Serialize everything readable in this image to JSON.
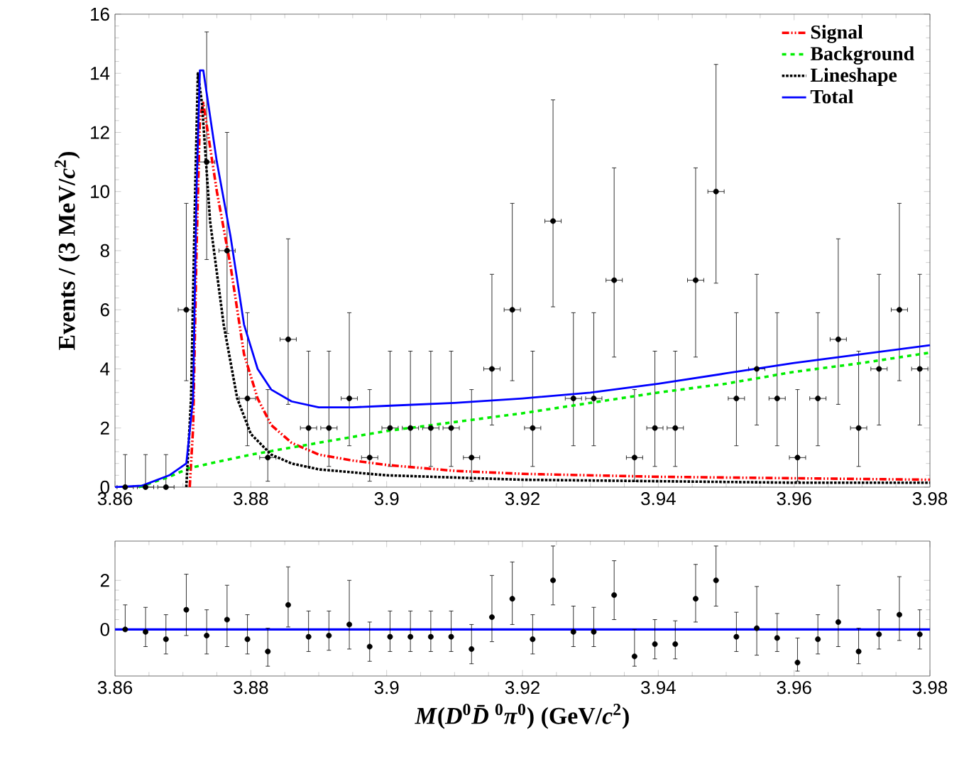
{
  "chart_data": [
    {
      "type": "line",
      "ylabel": "Events / (3 MeV/*c*$^{2}$)",
      "xlim": [
        3.86,
        3.98
      ],
      "xticks": [
        3.86,
        3.88,
        3.9,
        3.92,
        3.94,
        3.96,
        3.98
      ],
      "ylim": [
        0,
        16
      ],
      "yticks": [
        0,
        2,
        4,
        6,
        8,
        10,
        12,
        14,
        16
      ],
      "legend": "top right",
      "series": [
        {
          "type": "scatter",
          "color": "#000000",
          "marker": "circle",
          "x": [
            3.8615,
            3.8645,
            3.8675,
            3.8705,
            3.8735,
            3.8765,
            3.8795,
            3.8825,
            3.8855,
            3.8885,
            3.8915,
            3.8945,
            3.8975,
            3.9005,
            3.9035,
            3.9065,
            3.9095,
            3.9125,
            3.9155,
            3.9185,
            3.9215,
            3.9245,
            3.9275,
            3.9305,
            3.9335,
            3.9365,
            3.9395,
            3.9425,
            3.9455,
            3.9485,
            3.9515,
            3.9545,
            3.9575,
            3.9605,
            3.9635,
            3.9665,
            3.9695,
            3.9725,
            3.9755,
            3.9785
          ],
          "values": [
            0,
            0,
            0,
            6,
            11,
            8,
            3,
            1,
            5,
            2,
            2,
            3,
            1,
            2,
            2,
            2,
            2,
            1,
            4,
            6,
            2,
            9,
            3,
            3,
            7,
            1,
            2,
            2,
            7,
            10,
            3,
            4,
            3,
            1,
            3,
            5,
            2,
            4,
            6,
            4
          ],
          "errors": [
            [
              0,
              1.1
            ],
            [
              0,
              1.1
            ],
            [
              0,
              1.1
            ],
            [
              3.6,
              9.6
            ],
            [
              7.7,
              15.4
            ],
            [
              5.2,
              12.0
            ],
            [
              1.4,
              5.9
            ],
            [
              0.2,
              3.3
            ],
            [
              2.8,
              8.4
            ],
            [
              0.7,
              4.6
            ],
            [
              0.7,
              4.6
            ],
            [
              1.4,
              5.9
            ],
            [
              0.2,
              3.3
            ],
            [
              0.7,
              4.6
            ],
            [
              0.7,
              4.6
            ],
            [
              0.7,
              4.6
            ],
            [
              0.7,
              4.6
            ],
            [
              0.2,
              3.3
            ],
            [
              2.1,
              7.2
            ],
            [
              3.6,
              9.6
            ],
            [
              0.7,
              4.6
            ],
            [
              6.1,
              13.1
            ],
            [
              1.4,
              5.9
            ],
            [
              1.4,
              5.9
            ],
            [
              4.4,
              10.8
            ],
            [
              0.2,
              3.3
            ],
            [
              0.7,
              4.6
            ],
            [
              0.7,
              4.6
            ],
            [
              4.4,
              10.8
            ],
            [
              6.9,
              14.3
            ],
            [
              1.4,
              5.9
            ],
            [
              2.1,
              7.2
            ],
            [
              1.4,
              5.9
            ],
            [
              0.2,
              3.3
            ],
            [
              1.4,
              5.9
            ],
            [
              2.8,
              8.4
            ],
            [
              0.7,
              4.6
            ],
            [
              2.1,
              7.2
            ],
            [
              3.6,
              9.6
            ],
            [
              2.1,
              7.2
            ]
          ],
          "xerrors": [
            0.0012,
            0.0012,
            0.0012,
            0.0012,
            0.0012,
            0.0012,
            0.0012,
            0.0012,
            0.0012,
            0.0012,
            0.0012,
            0.0012,
            0.0012,
            0.0012,
            0.0012,
            0.0012,
            0.0012,
            0.0012,
            0.0012,
            0.0012,
            0.0012,
            0.0012,
            0.0012,
            0.0012,
            0.0012,
            0.0012,
            0.0012,
            0.0012,
            0.0012,
            0.0012,
            0.0012,
            0.0012,
            0.0012,
            0.0012,
            0.0012,
            0.0012,
            0.0012,
            0.0012,
            0.0012,
            0.0012
          ]
        },
        {
          "name": "Signal",
          "color": "#ff0000",
          "line_style": "dashdot",
          "x": [
            3.871,
            3.8715,
            3.872,
            3.8725,
            3.873,
            3.875,
            3.877,
            3.879,
            3.881,
            3.883,
            3.886,
            3.89,
            3.895,
            3.9,
            3.91,
            3.92,
            3.94,
            3.96,
            3.98
          ],
          "values": [
            0,
            2,
            8,
            12.5,
            13,
            10,
            7.5,
            4.5,
            3.0,
            2.1,
            1.5,
            1.1,
            0.9,
            0.75,
            0.55,
            0.45,
            0.35,
            0.3,
            0.25
          ]
        },
        {
          "name": "Background",
          "color": "#00ee00",
          "line_style": "dashed",
          "x": [
            3.8635,
            3.868,
            3.871,
            3.88,
            3.89,
            3.9,
            3.91,
            3.92,
            3.93,
            3.94,
            3.95,
            3.96,
            3.97,
            3.98
          ],
          "values": [
            0,
            0.35,
            0.65,
            1.1,
            1.5,
            1.9,
            2.2,
            2.5,
            2.85,
            3.2,
            3.5,
            3.9,
            4.2,
            4.55
          ]
        },
        {
          "name": "Lineshape",
          "color": "#000000",
          "line_style": "dotted",
          "x": [
            3.8705,
            3.8712,
            3.8718,
            3.8722,
            3.8728,
            3.874,
            3.876,
            3.878,
            3.88,
            3.883,
            3.886,
            3.89,
            3.9,
            3.92,
            3.94,
            3.96,
            3.98
          ],
          "values": [
            0,
            3,
            10,
            14,
            13,
            9,
            5.5,
            3,
            1.8,
            1.1,
            0.8,
            0.6,
            0.4,
            0.25,
            0.2,
            0.15,
            0.15
          ]
        },
        {
          "name": "Total",
          "color": "#0000ff",
          "line_style": "solid",
          "x": [
            3.86,
            3.864,
            3.868,
            3.8705,
            3.8715,
            3.872,
            3.8725,
            3.873,
            3.875,
            3.877,
            3.879,
            3.881,
            3.883,
            3.886,
            3.89,
            3.895,
            3.9,
            3.91,
            3.92,
            3.93,
            3.94,
            3.95,
            3.96,
            3.97,
            3.98
          ],
          "values": [
            0,
            0.05,
            0.4,
            0.8,
            3,
            10,
            14.1,
            14.1,
            11,
            8.5,
            5.5,
            4.0,
            3.3,
            2.9,
            2.7,
            2.7,
            2.75,
            2.85,
            3.0,
            3.2,
            3.5,
            3.85,
            4.2,
            4.5,
            4.8
          ]
        }
      ]
    },
    {
      "type": "scatter",
      "xlabel": "*M*(*D*$^{0}$*D̄*$^{0}$*π*$^{0}$) (GeV/*c*$^{2}$)",
      "xlim": [
        3.86,
        3.98
      ],
      "xticks": [
        3.86,
        3.88,
        3.9,
        3.92,
        3.94,
        3.96,
        3.98
      ],
      "ylim": [
        -1.9,
        3.6
      ],
      "yticks": [
        0,
        2
      ],
      "marker": "circle",
      "ref_lines": [
        {
          "axis": "y",
          "value": 0,
          "color": "#0000ff"
        }
      ],
      "series": [
        {
          "color": "#000000",
          "x": [
            3.8615,
            3.8645,
            3.8675,
            3.8705,
            3.8735,
            3.8765,
            3.8795,
            3.8825,
            3.8855,
            3.8885,
            3.8915,
            3.8945,
            3.8975,
            3.9005,
            3.9035,
            3.9065,
            3.9095,
            3.9125,
            3.9155,
            3.9185,
            3.9215,
            3.9245,
            3.9275,
            3.9305,
            3.9335,
            3.9365,
            3.9395,
            3.9425,
            3.9455,
            3.9485,
            3.9515,
            3.9545,
            3.9575,
            3.9605,
            3.9635,
            3.9665,
            3.9695,
            3.9725,
            3.9755,
            3.9785
          ],
          "values": [
            0,
            -0.1,
            -0.4,
            0.8,
            -0.25,
            0.4,
            -0.4,
            -0.9,
            1.0,
            -0.3,
            -0.25,
            0.2,
            -0.7,
            -0.3,
            -0.3,
            -0.3,
            -0.3,
            -0.8,
            0.5,
            1.25,
            -0.4,
            2.0,
            -0.1,
            -0.1,
            1.4,
            -1.1,
            -0.6,
            -0.6,
            1.25,
            2.0,
            -0.3,
            0.05,
            -0.35,
            -1.35,
            -0.4,
            0.3,
            -0.9,
            -0.2,
            0.6,
            -0.2
          ],
          "errors": [
            [
              0,
              1.0
            ],
            [
              -0.7,
              0.9
            ],
            [
              -1.0,
              0.6
            ],
            [
              -0.25,
              2.25
            ],
            [
              -1.0,
              0.8
            ],
            [
              -0.7,
              1.8
            ],
            [
              -1.0,
              0.6
            ],
            [
              -1.5,
              0.05
            ],
            [
              0.1,
              2.55
            ],
            [
              -0.9,
              0.75
            ],
            [
              -0.85,
              0.75
            ],
            [
              -0.8,
              2.0
            ],
            [
              -1.3,
              0.3
            ],
            [
              -0.9,
              0.75
            ],
            [
              -0.9,
              0.75
            ],
            [
              -0.9,
              0.75
            ],
            [
              -0.9,
              0.75
            ],
            [
              -1.4,
              0.2
            ],
            [
              -0.5,
              2.2
            ],
            [
              0.2,
              2.75
            ],
            [
              -1.0,
              0.6
            ],
            [
              1.0,
              3.4
            ],
            [
              -0.7,
              0.95
            ],
            [
              -0.7,
              0.9
            ],
            [
              0.4,
              2.8
            ],
            [
              -1.5,
              0.0
            ],
            [
              -1.2,
              0.4
            ],
            [
              -1.2,
              0.35
            ],
            [
              0.3,
              2.65
            ],
            [
              0.95,
              3.4
            ],
            [
              -0.9,
              0.7
            ],
            [
              -1.05,
              1.75
            ],
            [
              -0.9,
              0.65
            ],
            [
              -1.7,
              -0.35
            ],
            [
              -1.0,
              0.6
            ],
            [
              -0.7,
              1.8
            ],
            [
              -1.4,
              0.05
            ],
            [
              -0.8,
              0.8
            ],
            [
              -0.45,
              2.15
            ],
            [
              -0.8,
              0.8
            ]
          ]
        }
      ]
    }
  ]
}
